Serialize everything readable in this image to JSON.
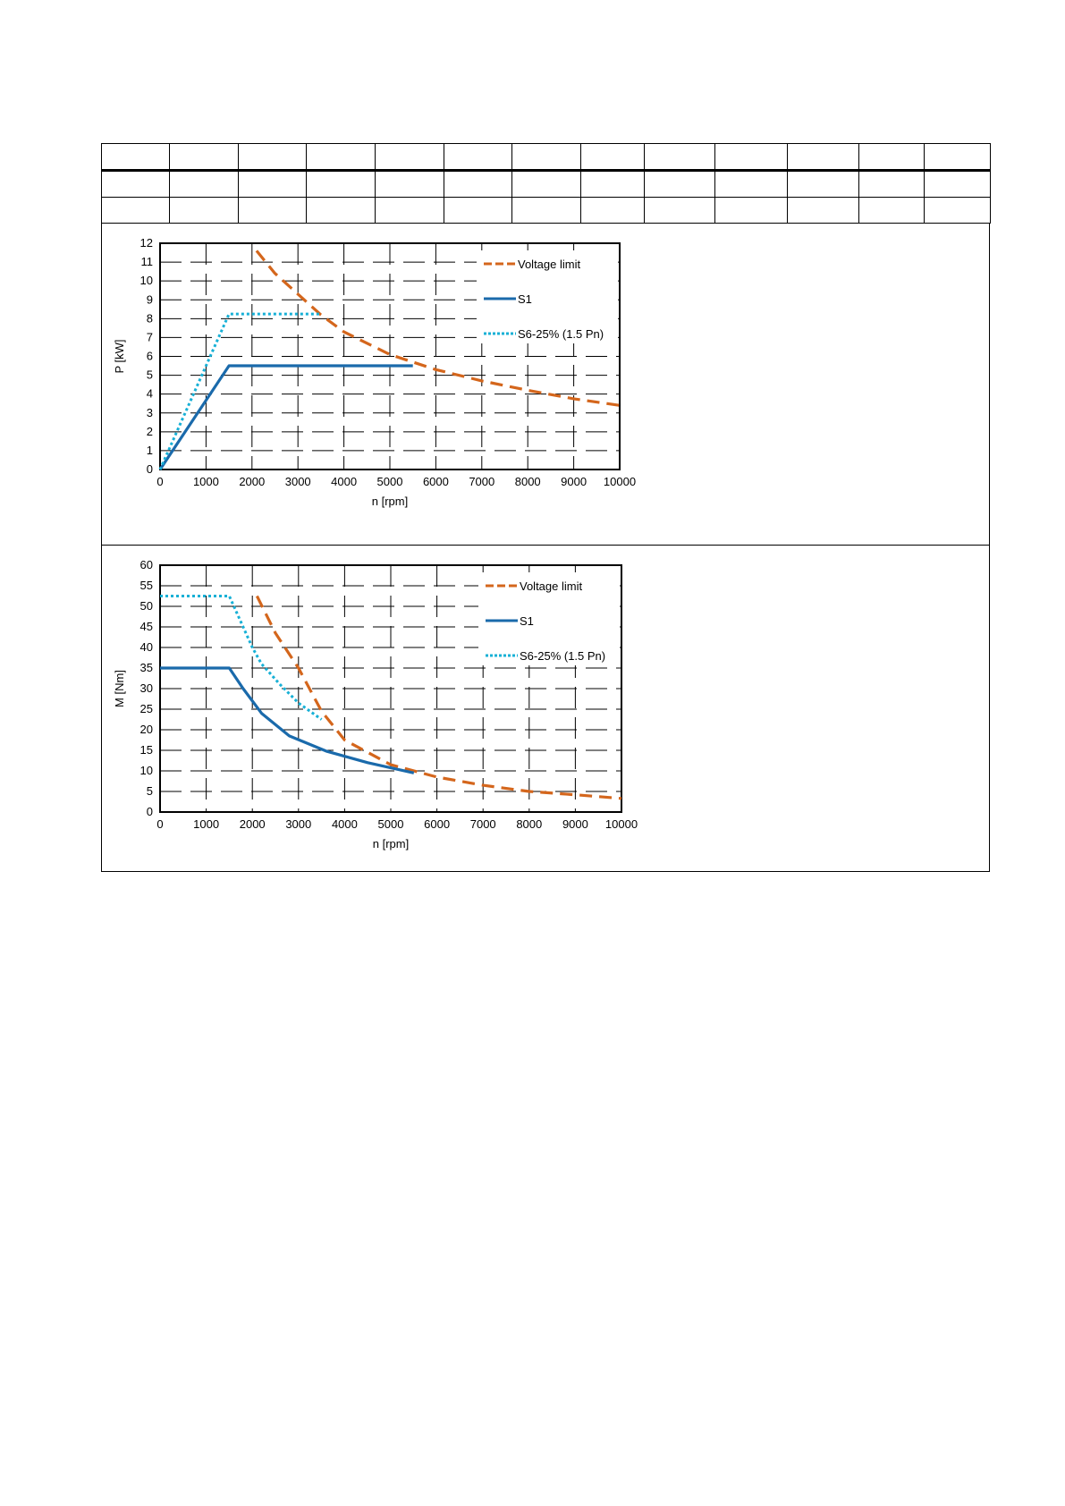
{
  "header_table": {
    "columns": 13,
    "rows": 3
  },
  "colors": {
    "voltage_limit": "#d4661c",
    "s1": "#1a6aab",
    "s6": "#17b0d6",
    "grid": "#000000"
  },
  "chart_data": [
    {
      "type": "line",
      "title": "",
      "xlabel": "n [rpm]",
      "ylabel": "P [kW]",
      "xlim": [
        0,
        10000
      ],
      "ylim": [
        0,
        12
      ],
      "xticks": [
        0,
        1000,
        2000,
        3000,
        4000,
        5000,
        6000,
        7000,
        8000,
        9000,
        10000
      ],
      "yticks": [
        0,
        1,
        2,
        3,
        4,
        5,
        6,
        7,
        8,
        9,
        10,
        11,
        12
      ],
      "grid": true,
      "legend_position": "top-right",
      "series": [
        {
          "name": "Voltage limit",
          "style": "dashed",
          "x": [
            2100,
            2500,
            3000,
            3500,
            4000,
            5000,
            6000,
            7000,
            8000,
            9000,
            10000
          ],
          "y": [
            11.6,
            10.4,
            9.3,
            8.2,
            7.3,
            6.1,
            5.3,
            4.7,
            4.2,
            3.75,
            3.4
          ]
        },
        {
          "name": "S1",
          "style": "solid",
          "x": [
            0,
            1500,
            5500
          ],
          "y": [
            0,
            5.5,
            5.5
          ]
        },
        {
          "name": "S6-25% (1.5 Pn)",
          "style": "dotted",
          "x": [
            0,
            1500,
            3500
          ],
          "y": [
            0,
            8.25,
            8.25
          ]
        }
      ]
    },
    {
      "type": "line",
      "title": "",
      "xlabel": "n [rpm]",
      "ylabel": "M [Nm]",
      "xlim": [
        0,
        10000
      ],
      "ylim": [
        0,
        60
      ],
      "xticks": [
        0,
        1000,
        2000,
        3000,
        4000,
        5000,
        6000,
        7000,
        8000,
        9000,
        10000
      ],
      "yticks": [
        0,
        5,
        10,
        15,
        20,
        25,
        30,
        35,
        40,
        45,
        50,
        55,
        60
      ],
      "grid": true,
      "legend_position": "top-right",
      "series": [
        {
          "name": "Voltage limit",
          "style": "dashed",
          "x": [
            2100,
            2500,
            3000,
            3500,
            4000,
            5000,
            6000,
            7000,
            8000,
            9000,
            10000
          ],
          "y": [
            52.5,
            43.5,
            35,
            24.5,
            17.5,
            11.5,
            8.5,
            6.5,
            5,
            4.2,
            3.3
          ]
        },
        {
          "name": "S1",
          "style": "solid",
          "x": [
            0,
            1500,
            1800,
            2200,
            2800,
            3600,
            4500,
            5500
          ],
          "y": [
            35,
            35,
            30,
            24,
            18.5,
            14.8,
            12,
            9.5
          ]
        },
        {
          "name": "S6-25% (1.5 Pn)",
          "style": "dotted",
          "x": [
            0,
            1500,
            2000,
            2200,
            2600,
            3000,
            3500
          ],
          "y": [
            52.5,
            52.5,
            40,
            36,
            31,
            26.5,
            22.5
          ]
        }
      ]
    }
  ]
}
